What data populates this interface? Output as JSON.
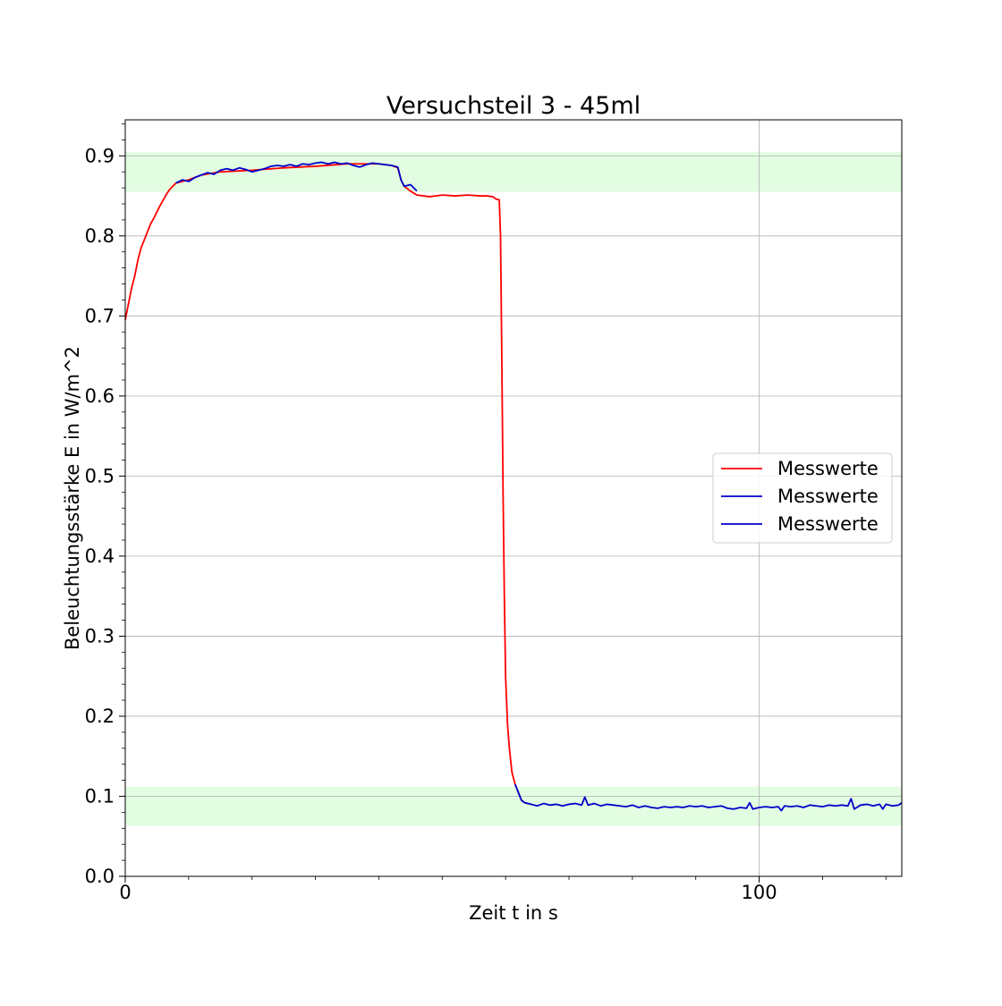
{
  "chart_data": {
    "type": "line",
    "title": "Versuchsteil 3 - 45ml",
    "xlabel": "Zeit t in s",
    "ylabel": "Beleuchtungsstärke E in W/m^2",
    "xlim": [
      0,
      122.5
    ],
    "ylim": [
      0,
      0.945
    ],
    "x_ticks": [
      0,
      100
    ],
    "x_tick_labels": [
      "0",
      "100"
    ],
    "y_ticks": [
      0.0,
      0.1,
      0.2,
      0.3,
      0.4,
      0.5,
      0.6,
      0.7,
      0.8,
      0.9
    ],
    "y_tick_labels": [
      "0.0",
      "0.1",
      "0.2",
      "0.3",
      "0.4",
      "0.5",
      "0.6",
      "0.7",
      "0.8",
      "0.9"
    ],
    "grid": true,
    "legend_position": "center-right",
    "shaded_bands": [
      {
        "y_from": 0.855,
        "y_to": 0.905,
        "color": "#e2fde2"
      },
      {
        "y_from": 0.063,
        "y_to": 0.112,
        "color": "#e2fde2"
      }
    ],
    "series": [
      {
        "name": "Messwerte",
        "color": "#ff0000",
        "x": [
          0,
          0.5,
          1,
          1.5,
          2,
          2.5,
          3,
          3.5,
          4,
          4.5,
          5,
          5.5,
          6,
          6.5,
          7,
          7.5,
          8,
          9,
          10,
          12,
          15,
          20,
          25,
          30,
          35,
          40,
          42,
          43,
          43.5,
          44,
          45,
          46,
          48,
          50,
          52,
          54,
          56,
          57,
          58,
          58.5,
          59,
          59.2,
          59.4,
          59.6,
          59.8,
          60,
          60.3,
          60.6,
          61,
          61.5,
          62,
          62.5,
          63,
          63.5,
          64
        ],
        "y": [
          0.695,
          0.715,
          0.735,
          0.75,
          0.77,
          0.785,
          0.795,
          0.805,
          0.815,
          0.822,
          0.83,
          0.838,
          0.845,
          0.852,
          0.858,
          0.862,
          0.866,
          0.868,
          0.87,
          0.876,
          0.88,
          0.882,
          0.885,
          0.887,
          0.89,
          0.89,
          0.888,
          0.885,
          0.87,
          0.862,
          0.856,
          0.851,
          0.849,
          0.851,
          0.85,
          0.851,
          0.85,
          0.85,
          0.849,
          0.846,
          0.845,
          0.8,
          0.65,
          0.48,
          0.35,
          0.25,
          0.19,
          0.16,
          0.13,
          0.115,
          0.105,
          0.095,
          0.092,
          0.091,
          0.09
        ]
      },
      {
        "name": "Messwerte",
        "color": "#0000cc",
        "x": [
          8,
          9,
          10,
          11,
          12,
          13,
          14,
          15,
          16,
          17,
          18,
          19,
          20,
          21,
          22,
          23,
          24,
          25,
          26,
          27,
          28,
          29,
          30,
          31,
          32,
          33,
          34,
          35,
          36,
          37,
          38,
          39,
          40,
          41,
          42,
          43,
          43.5,
          44,
          45,
          46
        ],
        "y": [
          0.866,
          0.87,
          0.868,
          0.873,
          0.876,
          0.879,
          0.877,
          0.882,
          0.884,
          0.882,
          0.885,
          0.883,
          0.88,
          0.882,
          0.884,
          0.887,
          0.888,
          0.887,
          0.889,
          0.887,
          0.89,
          0.889,
          0.891,
          0.892,
          0.89,
          0.892,
          0.89,
          0.891,
          0.888,
          0.886,
          0.889,
          0.891,
          0.89,
          0.889,
          0.888,
          0.886,
          0.87,
          0.862,
          0.864,
          0.856
        ]
      },
      {
        "name": "Messwerte",
        "color": "#0000cc",
        "x": [
          61.5,
          62,
          62.5,
          63,
          64,
          65,
          66,
          67,
          68,
          69,
          70,
          71,
          72,
          72.5,
          73,
          74,
          75,
          76,
          77,
          78,
          79,
          80,
          81,
          82,
          83,
          84,
          85,
          86,
          87,
          88,
          89,
          90,
          91,
          92,
          93,
          94,
          95,
          96,
          97,
          98,
          98.5,
          99,
          100,
          101,
          102,
          103,
          103.5,
          104,
          105,
          106,
          107,
          108,
          109,
          110,
          111,
          112,
          113,
          114,
          114.5,
          115,
          116,
          117,
          118,
          119,
          119.5,
          120,
          121,
          122,
          122.5
        ],
        "y": [
          0.115,
          0.105,
          0.095,
          0.092,
          0.09,
          0.088,
          0.091,
          0.089,
          0.09,
          0.088,
          0.09,
          0.091,
          0.089,
          0.099,
          0.089,
          0.091,
          0.088,
          0.09,
          0.089,
          0.088,
          0.087,
          0.089,
          0.086,
          0.088,
          0.086,
          0.085,
          0.087,
          0.086,
          0.087,
          0.086,
          0.088,
          0.087,
          0.088,
          0.086,
          0.087,
          0.088,
          0.085,
          0.084,
          0.086,
          0.085,
          0.092,
          0.084,
          0.086,
          0.087,
          0.086,
          0.087,
          0.082,
          0.088,
          0.087,
          0.088,
          0.086,
          0.089,
          0.088,
          0.087,
          0.089,
          0.088,
          0.089,
          0.088,
          0.097,
          0.084,
          0.089,
          0.09,
          0.088,
          0.09,
          0.084,
          0.09,
          0.088,
          0.089,
          0.092
        ]
      }
    ],
    "legend": [
      "Messwerte",
      "Messwerte",
      "Messwerte"
    ]
  }
}
